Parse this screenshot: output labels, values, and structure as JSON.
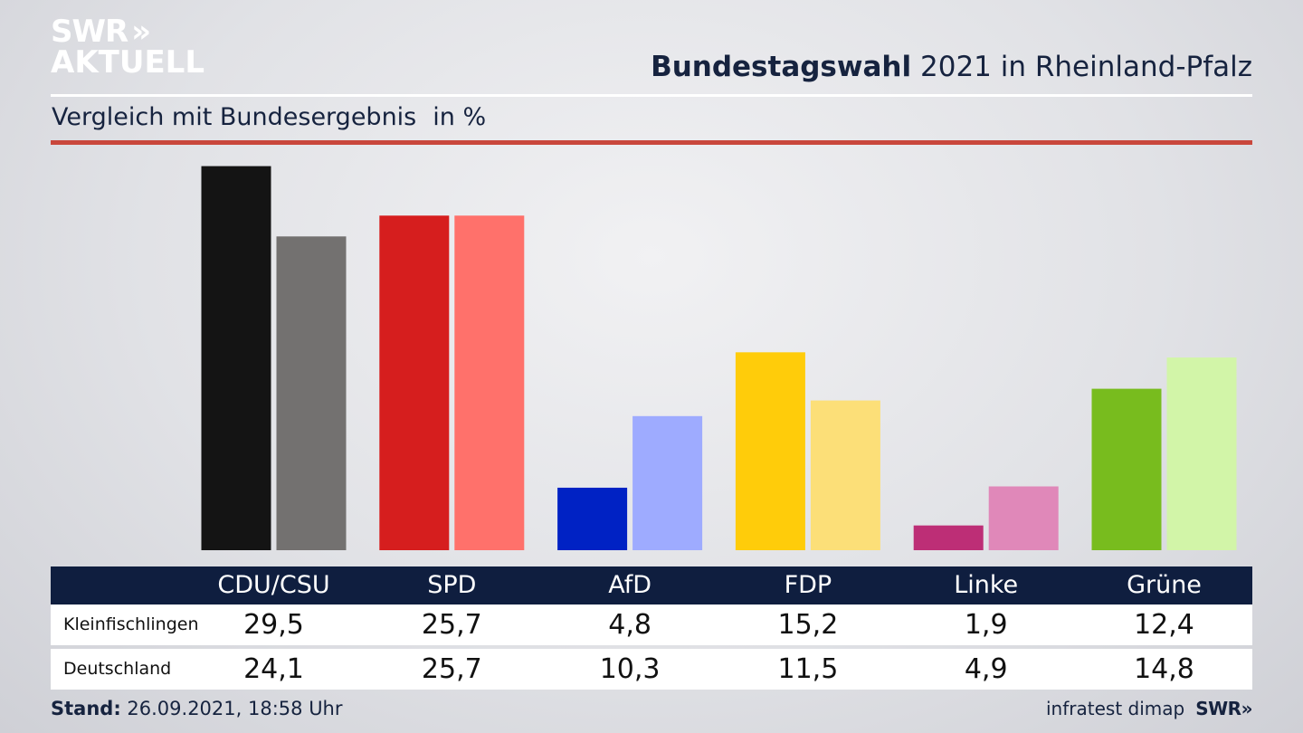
{
  "header": {
    "logo_line1": "SWR",
    "logo_chevrons": "»",
    "logo_line2": "AKTUELL",
    "title_bold": "Bundestagswahl",
    "title_rest": "2021 in Rheinland-Pfalz",
    "subtitle": "Vergleich mit Bundesergebnis",
    "unit": "in %"
  },
  "colors": {
    "title_text": "#16233f",
    "accent_line": "#c9473c",
    "table_header_bg": "#0f1e3f"
  },
  "chart_data": {
    "type": "bar",
    "categories": [
      "CDU/CSU",
      "SPD",
      "AfD",
      "FDP",
      "Linke",
      "Grüne"
    ],
    "series": [
      {
        "name": "Kleinfischlingen",
        "values": [
          29.5,
          25.7,
          4.8,
          15.2,
          1.9,
          12.4
        ],
        "colors": [
          "#141414",
          "#d61e1e",
          "#0022c4",
          "#ffcc0a",
          "#bd2e76",
          "#78bc1e"
        ]
      },
      {
        "name": "Deutschland",
        "values": [
          24.1,
          25.7,
          10.3,
          11.5,
          4.9,
          14.8
        ],
        "colors": [
          "#737170",
          "#ff716b",
          "#9eabff",
          "#fcdf78",
          "#e088b9",
          "#d2f5a8"
        ]
      }
    ],
    "display_values": [
      [
        "29,5",
        "25,7",
        "4,8",
        "15,2",
        "1,9",
        "12,4"
      ],
      [
        "24,1",
        "25,7",
        "10,3",
        "11,5",
        "4,9",
        "14,8"
      ]
    ],
    "ylim": [
      0,
      31
    ],
    "grid": false
  },
  "footer": {
    "stand_label": "Stand:",
    "stand_value": "26.09.2021, 18:58 Uhr",
    "source": "infratest dimap",
    "source_logo": "SWR»"
  }
}
